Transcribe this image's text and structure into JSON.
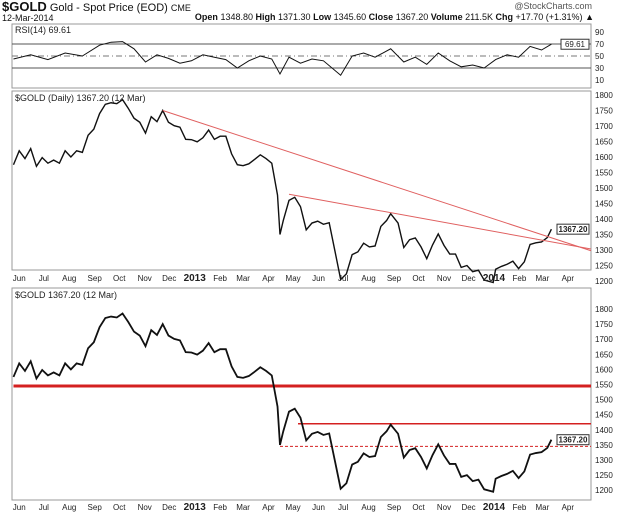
{
  "header": {
    "symbol": "$GOLD",
    "name": "Gold - Spot Price (EOD)",
    "exchange": "CME",
    "date": "12-Mar-2014",
    "watermark": "@StockCharts.com",
    "open_label": "Open",
    "open": "1348.80",
    "high_label": "High",
    "high": "1371.30",
    "low_label": "Low",
    "low": "1345.60",
    "close_label": "Close",
    "close": "1367.20",
    "volume_label": "Volume",
    "volume": "211.5K",
    "chg_label": "Chg",
    "chg": "+17.70 (+1.31%)",
    "chg_icon": "triangle-up-icon"
  },
  "colors": {
    "price": "#111111",
    "trendline": "#e06060",
    "support": "#d42020",
    "rsi_fill": "#888888"
  },
  "chart_data": [
    {
      "type": "line",
      "title": "RSI(14) 69.61",
      "ylim": [
        0,
        100
      ],
      "yticks": [
        10,
        30,
        50,
        70,
        90
      ],
      "reference_lines": [
        30,
        50,
        70
      ],
      "last_value_tag": "69.61",
      "x": [
        "2012-05-25",
        "2012-06-15",
        "2012-07-06",
        "2012-07-27",
        "2012-08-17",
        "2012-09-07",
        "2012-09-21",
        "2012-10-05",
        "2012-10-19",
        "2012-11-02",
        "2012-11-16",
        "2012-11-30",
        "2012-12-14",
        "2012-12-28",
        "2013-01-11",
        "2013-01-25",
        "2013-02-08",
        "2013-02-22",
        "2013-03-08",
        "2013-03-22",
        "2013-04-05",
        "2013-04-15",
        "2013-04-26",
        "2013-05-10",
        "2013-05-24",
        "2013-06-07",
        "2013-06-28",
        "2013-07-12",
        "2013-07-26",
        "2013-08-09",
        "2013-08-28",
        "2013-09-13",
        "2013-09-27",
        "2013-10-11",
        "2013-10-25",
        "2013-11-08",
        "2013-11-22",
        "2013-12-06",
        "2013-12-20",
        "2014-01-03",
        "2014-01-17",
        "2014-01-31",
        "2014-02-14",
        "2014-02-28",
        "2014-03-12"
      ],
      "values": [
        45,
        52,
        44,
        55,
        50,
        68,
        73,
        74,
        62,
        40,
        52,
        46,
        38,
        42,
        52,
        48,
        44,
        30,
        42,
        50,
        45,
        20,
        48,
        38,
        45,
        42,
        18,
        50,
        55,
        48,
        62,
        40,
        48,
        36,
        55,
        42,
        32,
        35,
        30,
        44,
        52,
        48,
        66,
        60,
        69.61
      ]
    },
    {
      "type": "line",
      "title": "$GOLD (Daily) 1367.20 (12 Mar)",
      "ylim": [
        1175,
        1820
      ],
      "yticks": [
        1200,
        1250,
        1300,
        1350,
        1400,
        1450,
        1500,
        1550,
        1600,
        1650,
        1700,
        1750,
        1800
      ],
      "last_value_tag": "1367.20",
      "xticks": [
        "Jun",
        "Jul",
        "Aug",
        "Sep",
        "Oct",
        "Nov",
        "Dec",
        "2013",
        "Feb",
        "Mar",
        "Apr",
        "May",
        "Jun",
        "Jul",
        "Aug",
        "Sep",
        "Oct",
        "Nov",
        "Dec",
        "2014",
        "Feb",
        "Mar",
        "Apr"
      ],
      "trendlines": [
        {
          "from": [
            "2012-11-23",
            1750
          ],
          "to": [
            "2014-04-15",
            1310
          ]
        },
        {
          "from": [
            "2013-04-26",
            1480
          ],
          "to": [
            "2014-04-15",
            1310
          ]
        }
      ]
    },
    {
      "type": "line",
      "title": "$GOLD 1367.20 (12 Mar)",
      "ylim": [
        1175,
        1820
      ],
      "last_value_tag": "1367.20",
      "horizontal_lines": [
        {
          "value": 1545,
          "from": "2012-05-25",
          "style": "thick"
        },
        {
          "value": 1420,
          "from": "2013-05-07",
          "style": "solid"
        },
        {
          "value": 1345,
          "from": "2013-04-15",
          "style": "dashed"
        }
      ]
    }
  ],
  "price_series": {
    "x": [
      "2012-05-25",
      "2012-06-01",
      "2012-06-08",
      "2012-06-15",
      "2012-06-22",
      "2012-06-29",
      "2012-07-06",
      "2012-07-13",
      "2012-07-20",
      "2012-07-27",
      "2012-08-03",
      "2012-08-10",
      "2012-08-17",
      "2012-08-24",
      "2012-08-31",
      "2012-09-07",
      "2012-09-14",
      "2012-09-21",
      "2012-09-28",
      "2012-10-05",
      "2012-10-12",
      "2012-10-19",
      "2012-10-26",
      "2012-11-02",
      "2012-11-09",
      "2012-11-16",
      "2012-11-23",
      "2012-11-30",
      "2012-12-07",
      "2012-12-14",
      "2012-12-21",
      "2012-12-28",
      "2013-01-04",
      "2013-01-11",
      "2013-01-18",
      "2013-01-25",
      "2013-02-01",
      "2013-02-08",
      "2013-02-15",
      "2013-02-22",
      "2013-03-01",
      "2013-03-08",
      "2013-03-15",
      "2013-03-22",
      "2013-03-29",
      "2013-04-05",
      "2013-04-12",
      "2013-04-15",
      "2013-04-19",
      "2013-04-26",
      "2013-05-03",
      "2013-05-10",
      "2013-05-17",
      "2013-05-24",
      "2013-05-31",
      "2013-06-07",
      "2013-06-14",
      "2013-06-21",
      "2013-06-28",
      "2013-07-05",
      "2013-07-12",
      "2013-07-19",
      "2013-07-26",
      "2013-08-02",
      "2013-08-09",
      "2013-08-16",
      "2013-08-23",
      "2013-08-28",
      "2013-09-06",
      "2013-09-13",
      "2013-09-20",
      "2013-09-27",
      "2013-10-04",
      "2013-10-11",
      "2013-10-18",
      "2013-10-25",
      "2013-11-01",
      "2013-11-08",
      "2013-11-15",
      "2013-11-22",
      "2013-11-29",
      "2013-12-06",
      "2013-12-13",
      "2013-12-20",
      "2013-12-31",
      "2014-01-03",
      "2014-01-10",
      "2014-01-17",
      "2014-01-24",
      "2014-01-31",
      "2014-02-07",
      "2014-02-14",
      "2014-02-21",
      "2014-02-28",
      "2014-03-07",
      "2014-03-12"
    ],
    "close": [
      1575,
      1620,
      1595,
      1627,
      1570,
      1598,
      1580,
      1590,
      1580,
      1620,
      1600,
      1620,
      1615,
      1670,
      1690,
      1740,
      1770,
      1775,
      1772,
      1785,
      1757,
      1725,
      1712,
      1677,
      1730,
      1714,
      1750,
      1712,
      1701,
      1696,
      1657,
      1656,
      1649,
      1662,
      1687,
      1657,
      1667,
      1667,
      1610,
      1575,
      1572,
      1578,
      1592,
      1607,
      1595,
      1580,
      1477,
      1350,
      1395,
      1460,
      1470,
      1440,
      1365,
      1387,
      1393,
      1383,
      1388,
      1297,
      1205,
      1223,
      1285,
      1294,
      1322,
      1310,
      1313,
      1376,
      1395,
      1417,
      1387,
      1308,
      1333,
      1339,
      1310,
      1272,
      1316,
      1352,
      1315,
      1287,
      1287,
      1244,
      1250,
      1230,
      1235,
      1203,
      1195,
      1238,
      1247,
      1254,
      1264,
      1240,
      1262,
      1318,
      1323,
      1326,
      1340,
      1367.2
    ]
  }
}
